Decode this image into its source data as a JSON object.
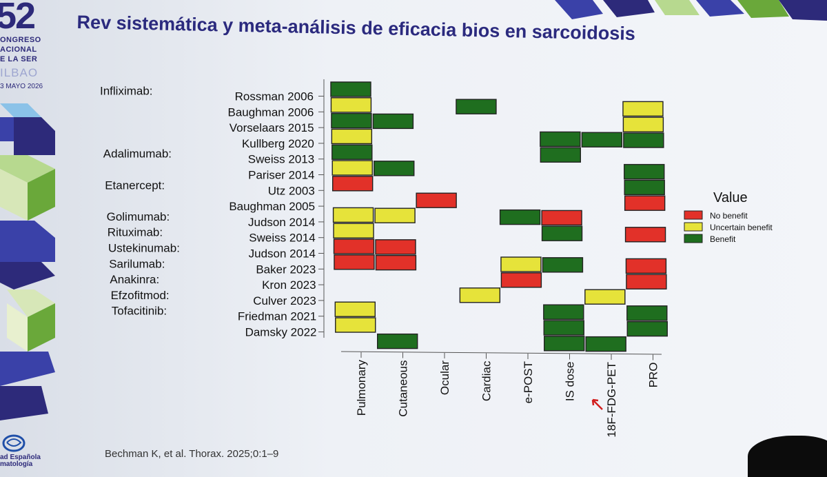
{
  "branding": {
    "number": "52",
    "line1": "ONGRESO",
    "line2": "ACIONAL",
    "line3": "E LA SER",
    "city": "ILBAO",
    "date": "3 MAYO 2026",
    "logo_line1": "ad Española",
    "logo_line2": "matología"
  },
  "slide": {
    "title": "Rev sistemática y meta-análisis de eficacia bios en sarcoidosis",
    "citation": "Bechman K, et al. Thorax. 2025;0:1–9"
  },
  "colors": {
    "No benefit": "#e23129",
    "Uncertain benefit": "#e6e33a",
    "Benefit": "#1f6e1f"
  },
  "chart_data": {
    "type": "heatmap",
    "x_categories": [
      "Pulmonary",
      "Cutaneous",
      "Ocular",
      "Cardiac",
      "e-POST",
      "IS dose",
      "18F-FDG-PET",
      "PRO"
    ],
    "rows": [
      {
        "drug": "Infliximab:",
        "study": "Rossman 2006",
        "values": {
          "Pulmonary": "Benefit"
        }
      },
      {
        "drug": "",
        "study": "Baughman 2006",
        "values": {
          "Pulmonary": "Uncertain benefit",
          "Cardiac": "Benefit",
          "PRO": "Uncertain benefit"
        }
      },
      {
        "drug": "",
        "study": "Vorselaars 2015",
        "values": {
          "Pulmonary": "Benefit",
          "Cutaneous": "Benefit",
          "PRO": "Uncertain benefit"
        }
      },
      {
        "drug": "",
        "study": "Kullberg 2020",
        "values": {
          "Pulmonary": "Uncertain benefit",
          "IS dose": "Benefit",
          "18F-FDG-PET": "Benefit",
          "PRO": "Benefit"
        }
      },
      {
        "drug": "Adalimumab:",
        "study": "Sweiss 2013",
        "values": {
          "Pulmonary": "Benefit",
          "IS dose": "Benefit"
        }
      },
      {
        "drug": "",
        "study": "Pariser 2014",
        "values": {
          "Pulmonary": "Uncertain benefit",
          "Cutaneous": "Benefit",
          "PRO": "Benefit"
        }
      },
      {
        "drug": "Etanercept:",
        "study": "Utz 2003",
        "values": {
          "Pulmonary": "No benefit",
          "PRO": "Benefit"
        }
      },
      {
        "drug": "",
        "study": "Baughman 2005",
        "values": {
          "Ocular": "No benefit",
          "PRO": "No benefit"
        }
      },
      {
        "drug": "Golimumab:",
        "study": "Judson 2014",
        "values": {
          "Pulmonary": "Uncertain benefit",
          "Cutaneous": "Uncertain benefit",
          "e-POST": "Benefit",
          "IS dose": "No benefit"
        }
      },
      {
        "drug": "Rituximab:",
        "study": "Sweiss 2014",
        "values": {
          "Pulmonary": "Uncertain benefit",
          "IS dose": "Benefit",
          "PRO": "No benefit"
        }
      },
      {
        "drug": "Ustekinumab:",
        "study": "Judson 2014",
        "values": {
          "Pulmonary": "No benefit",
          "Cutaneous": "No benefit"
        }
      },
      {
        "drug": "Sarilumab:",
        "study": "Baker 2023",
        "values": {
          "Pulmonary": "No benefit",
          "Cutaneous": "No benefit",
          "e-POST": "Uncertain benefit",
          "IS dose": "Benefit",
          "PRO": "No benefit"
        }
      },
      {
        "drug": "Anakinra:",
        "study": "Kron 2023",
        "values": {
          "e-POST": "No benefit",
          "PRO": "No benefit"
        }
      },
      {
        "drug": "Efzofitmod:",
        "study": "Culver 2023",
        "values": {
          "Cardiac": "Uncertain benefit",
          "18F-FDG-PET": "Uncertain benefit"
        }
      },
      {
        "drug": "Tofacitinib:",
        "study": "Friedman 2021",
        "values": {
          "Pulmonary": "Uncertain benefit",
          "IS dose": "Benefit",
          "PRO": "Benefit"
        }
      },
      {
        "drug": "",
        "study": "Damsky 2022",
        "values": {
          "Pulmonary": "Uncertain benefit",
          "IS dose": "Benefit",
          "PRO": "Benefit"
        }
      },
      {
        "drug": "",
        "study": "",
        "values": {
          "Cutaneous": "Benefit",
          "IS dose": "Benefit",
          "18F-FDG-PET": "Benefit"
        }
      }
    ],
    "legend": {
      "title": "Value",
      "items": [
        "No benefit",
        "Uncertain benefit",
        "Benefit"
      ],
      "placement": "right"
    }
  }
}
